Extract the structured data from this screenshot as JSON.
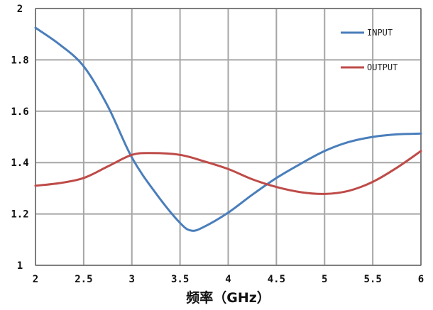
{
  "chart_data": {
    "type": "line",
    "title": "",
    "xlabel": "频率（GHz）",
    "ylabel": "",
    "xlim": [
      2,
      6
    ],
    "ylim": [
      1,
      2
    ],
    "xticks": [
      "2",
      "2.5",
      "3",
      "3.5",
      "4",
      "4.5",
      "5",
      "5.5",
      "6"
    ],
    "yticks": [
      "1",
      "1.2",
      "1.4",
      "1.6",
      "1.8",
      "2"
    ],
    "grid": true,
    "legend_position": "top-right",
    "series": [
      {
        "name": "INPUT",
        "color": "#4a7ebb",
        "x": [
          2.0,
          2.25,
          2.5,
          2.75,
          3.0,
          3.25,
          3.5,
          3.62,
          3.75,
          4.0,
          4.25,
          4.5,
          4.75,
          5.0,
          5.25,
          5.5,
          5.75,
          6.0
        ],
        "y": [
          1.925,
          1.86,
          1.775,
          1.62,
          1.42,
          1.28,
          1.165,
          1.135,
          1.15,
          1.205,
          1.275,
          1.34,
          1.395,
          1.445,
          1.48,
          1.5,
          1.51,
          1.513
        ]
      },
      {
        "name": "OUTPUT",
        "color": "#be4b48",
        "x": [
          2.0,
          2.25,
          2.5,
          2.75,
          3.0,
          3.2,
          3.5,
          3.75,
          4.0,
          4.25,
          4.5,
          4.75,
          5.0,
          5.25,
          5.5,
          5.75,
          6.0
        ],
        "y": [
          1.31,
          1.32,
          1.34,
          1.385,
          1.43,
          1.437,
          1.43,
          1.405,
          1.375,
          1.335,
          1.305,
          1.285,
          1.278,
          1.29,
          1.325,
          1.38,
          1.445
        ]
      }
    ]
  }
}
